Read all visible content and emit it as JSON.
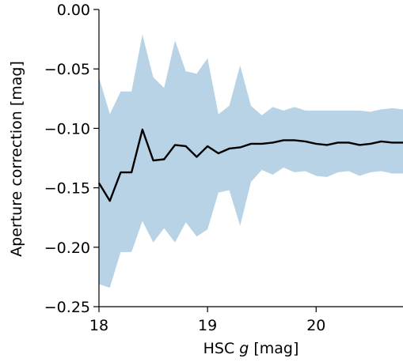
{
  "chart_data": {
    "type": "line",
    "xlabel_prefix": "HSC ",
    "xlabel_var": "g",
    "xlabel_suffix": " [mag]",
    "ylabel": "Aperture correction [mag]",
    "xlim": [
      18.0,
      20.8
    ],
    "ylim": [
      -0.25,
      0.0
    ],
    "x_ticks": [
      {
        "value": 18,
        "label": "18"
      },
      {
        "value": 19,
        "label": "19"
      },
      {
        "value": 20,
        "label": "20"
      }
    ],
    "y_ticks": [
      {
        "value": 0.0,
        "label": "0.00"
      },
      {
        "value": -0.05,
        "label": "−0.05"
      },
      {
        "value": -0.1,
        "label": "−0.10"
      },
      {
        "value": -0.15,
        "label": "−0.15"
      },
      {
        "value": -0.2,
        "label": "−0.20"
      },
      {
        "value": -0.25,
        "label": "−0.25"
      }
    ],
    "line_color": "#000000",
    "band_color": "#b9d3e6",
    "series": [
      {
        "x": [
          18.0,
          18.1,
          18.2,
          18.3,
          18.4,
          18.5,
          18.6,
          18.7,
          18.8,
          18.9,
          19.0,
          19.1,
          19.2,
          19.3,
          19.4,
          19.5,
          19.6,
          19.7,
          19.8,
          19.9,
          20.0,
          20.1,
          20.2,
          20.3,
          20.4,
          20.5,
          20.6,
          20.7,
          20.8
        ],
        "y": [
          -0.146,
          -0.161,
          -0.137,
          -0.137,
          -0.101,
          -0.127,
          -0.126,
          -0.114,
          -0.115,
          -0.124,
          -0.115,
          -0.121,
          -0.117,
          -0.116,
          -0.113,
          -0.113,
          -0.112,
          -0.11,
          -0.11,
          -0.111,
          -0.113,
          -0.114,
          -0.112,
          -0.112,
          -0.114,
          -0.113,
          -0.111,
          -0.112,
          -0.112
        ],
        "upper": [
          -0.057,
          -0.088,
          -0.069,
          -0.069,
          -0.021,
          -0.057,
          -0.066,
          -0.026,
          -0.052,
          -0.054,
          -0.041,
          -0.088,
          -0.081,
          -0.047,
          -0.081,
          -0.089,
          -0.082,
          -0.085,
          -0.082,
          -0.085,
          -0.085,
          -0.085,
          -0.085,
          -0.085,
          -0.085,
          -0.086,
          -0.084,
          -0.083,
          -0.084
        ],
        "lower": [
          -0.231,
          -0.234,
          -0.204,
          -0.204,
          -0.178,
          -0.196,
          -0.184,
          -0.196,
          -0.179,
          -0.191,
          -0.185,
          -0.154,
          -0.152,
          -0.182,
          -0.145,
          -0.135,
          -0.139,
          -0.133,
          -0.137,
          -0.136,
          -0.14,
          -0.141,
          -0.137,
          -0.136,
          -0.14,
          -0.137,
          -0.136,
          -0.138,
          -0.138
        ]
      }
    ]
  }
}
